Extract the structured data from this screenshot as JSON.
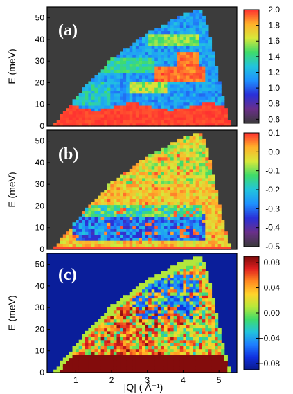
{
  "chart_data": [
    {
      "type": "heatmap",
      "panel_label": "(a)",
      "ylabel": "E (meV)",
      "xlim": [
        0.2,
        5.5
      ],
      "ylim": [
        0,
        55
      ],
      "yticks": [
        "0",
        "10",
        "20",
        "30",
        "40",
        "50"
      ],
      "colorbar": {
        "range": [
          0.55,
          2.0
        ],
        "ticks": [
          "2.0",
          "1.8",
          "1.6",
          "1.4",
          "1.2",
          "1.0",
          "0.8",
          "0.6"
        ],
        "colors": [
          "#3a3a3a",
          "#6a2f8a",
          "#2a30d8",
          "#1e90ff",
          "#22c4dd",
          "#3fdc6a",
          "#d8e83a",
          "#ffb02a",
          "#ff3030"
        ]
      },
      "background_color": "#3c3c3c",
      "kinematic_limit": [
        [
          0.4,
          1
        ],
        [
          1.2,
          17
        ],
        [
          2.0,
          31
        ],
        [
          3.0,
          43
        ],
        [
          4.0,
          51.5
        ],
        [
          4.5,
          54
        ],
        [
          4.6,
          50
        ],
        [
          4.8,
          38
        ],
        [
          5.1,
          14
        ],
        [
          5.3,
          2
        ],
        [
          5.35,
          0.5
        ]
      ],
      "features": [
        {
          "desc": "strong low-energy scattering",
          "E_range": [
            0,
            10
          ],
          "Q_range": [
            0.5,
            5.3
          ],
          "level": 2.0
        },
        {
          "desc": "band",
          "E_center": 24,
          "Q_range": [
            3.2,
            4.5
          ],
          "level": 1.9
        },
        {
          "desc": "band",
          "E_center": 30,
          "Q_range": [
            3.9,
            4.4
          ],
          "level": 1.9
        },
        {
          "desc": "band",
          "E_center": 40,
          "Q_range": [
            3.0,
            4.4
          ],
          "level": 1.4
        }
      ]
    },
    {
      "type": "heatmap",
      "panel_label": "(b)",
      "ylabel": "E (meV)",
      "xlim": [
        0.2,
        5.5
      ],
      "ylim": [
        0,
        55
      ],
      "yticks": [
        "0",
        "10",
        "20",
        "30",
        "40",
        "50"
      ],
      "colorbar": {
        "range": [
          -0.5,
          0.1
        ],
        "ticks": [
          "0.1",
          "0.0",
          "-0.1",
          "-0.2",
          "-0.3",
          "-0.4",
          "-0.5"
        ],
        "colors": [
          "#3a3a3a",
          "#6a2f8a",
          "#2a30d8",
          "#1e90ff",
          "#22c4dd",
          "#3fdc6a",
          "#d8e83a",
          "#ffb02a",
          "#ff3030"
        ]
      },
      "background_color": "#3c3c3c",
      "kinematic_limit": [
        [
          0.4,
          1
        ],
        [
          1.2,
          17
        ],
        [
          2.0,
          31
        ],
        [
          3.0,
          43
        ],
        [
          4.0,
          51.5
        ],
        [
          4.5,
          54
        ],
        [
          4.6,
          50
        ],
        [
          4.8,
          38
        ],
        [
          5.1,
          14
        ],
        [
          5.3,
          2
        ],
        [
          5.35,
          0.5
        ]
      ],
      "features": [
        {
          "desc": "weak negative region",
          "E_range": [
            5,
            17
          ],
          "Q_range": [
            1.0,
            4.5
          ],
          "level": -0.35
        },
        {
          "desc": "red edge",
          "E_range": [
            0,
            2
          ],
          "Q_range": [
            0.2,
            5.4
          ],
          "level": 0.1
        }
      ]
    },
    {
      "type": "heatmap",
      "panel_label": "(c)",
      "ylabel": "E (meV)",
      "xlabel": "|Q| ( Å⁻¹)",
      "xlim": [
        0.2,
        5.5
      ],
      "ylim": [
        0,
        55
      ],
      "xticks": [
        "1",
        "2",
        "3",
        "4",
        "5"
      ],
      "yticks": [
        "0",
        "10",
        "20",
        "30",
        "40",
        "50"
      ],
      "colorbar": {
        "range": [
          -0.09,
          0.09
        ],
        "ticks": [
          "0.08",
          "0.04",
          "0.00",
          "−0.04",
          "−0.08"
        ],
        "colors": [
          "#0a1a8c",
          "#1030e0",
          "#1e7fff",
          "#22c4dd",
          "#3fdc6a",
          "#b9e83a",
          "#ffd32a",
          "#ff8a20",
          "#e02020",
          "#7a0a0a"
        ]
      },
      "background_color": "#0a1e9a",
      "kinematic_limit": [
        [
          0.4,
          1
        ],
        [
          1.2,
          17
        ],
        [
          2.0,
          31
        ],
        [
          3.0,
          43
        ],
        [
          4.0,
          51.5
        ],
        [
          4.5,
          54
        ],
        [
          4.6,
          50
        ],
        [
          4.8,
          38
        ],
        [
          5.1,
          14
        ],
        [
          5.3,
          2
        ],
        [
          5.35,
          0.5
        ]
      ],
      "features": [
        {
          "desc": "strong positive region",
          "E_range": [
            0,
            8
          ],
          "Q_range": [
            0.5,
            5.2
          ],
          "level": 0.09
        }
      ]
    }
  ]
}
